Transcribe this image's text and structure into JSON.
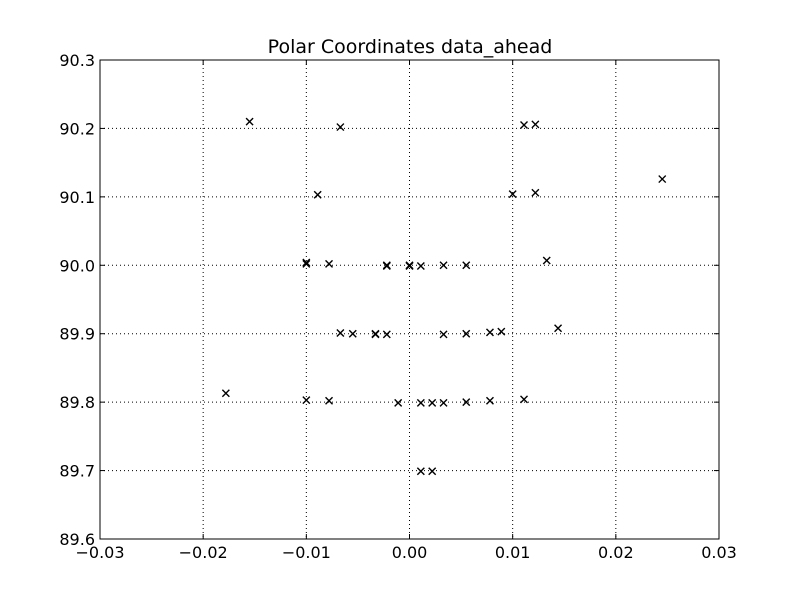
{
  "chart_data": {
    "type": "scatter",
    "title": "Polar Coordinates data_ahead",
    "xlabel": "",
    "ylabel": "",
    "xlim": [
      -0.03,
      0.03
    ],
    "ylim": [
      89.6,
      90.3
    ],
    "x_ticks": [
      -0.03,
      -0.02,
      -0.01,
      0.0,
      0.01,
      0.02,
      0.03
    ],
    "x_tick_labels": [
      "−0.03",
      "−0.02",
      "−0.01",
      "0.00",
      "0.01",
      "0.02",
      "0.03"
    ],
    "y_ticks": [
      89.6,
      89.7,
      89.8,
      89.9,
      90.0,
      90.1,
      90.2,
      90.3
    ],
    "y_tick_labels": [
      "89.6",
      "89.7",
      "89.8",
      "89.9",
      "90.0",
      "90.1",
      "90.2",
      "90.3"
    ],
    "grid": true,
    "marker": "x",
    "marker_color": "#000000",
    "points": [
      {
        "x": -0.0155,
        "y": 90.21
      },
      {
        "x": -0.0067,
        "y": 90.202
      },
      {
        "x": 0.0111,
        "y": 90.205
      },
      {
        "x": 0.0122,
        "y": 90.206
      },
      {
        "x": -0.0089,
        "y": 90.103
      },
      {
        "x": 0.01,
        "y": 90.104
      },
      {
        "x": 0.0122,
        "y": 90.106
      },
      {
        "x": 0.0245,
        "y": 90.126
      },
      {
        "x": -0.01,
        "y": 90.004
      },
      {
        "x": -0.01,
        "y": 90.002
      },
      {
        "x": -0.0078,
        "y": 90.002
      },
      {
        "x": -0.0022,
        "y": 90.0
      },
      {
        "x": -0.0022,
        "y": 89.999
      },
      {
        "x": 0.0,
        "y": 90.0
      },
      {
        "x": 0.0,
        "y": 89.999
      },
      {
        "x": 0.0011,
        "y": 89.999
      },
      {
        "x": 0.0033,
        "y": 90.0
      },
      {
        "x": 0.0055,
        "y": 90.0
      },
      {
        "x": 0.0133,
        "y": 90.007
      },
      {
        "x": -0.0067,
        "y": 89.901
      },
      {
        "x": -0.0055,
        "y": 89.9
      },
      {
        "x": -0.0033,
        "y": 89.9
      },
      {
        "x": -0.0033,
        "y": 89.899
      },
      {
        "x": -0.0022,
        "y": 89.899
      },
      {
        "x": 0.0033,
        "y": 89.899
      },
      {
        "x": 0.0055,
        "y": 89.9
      },
      {
        "x": 0.0078,
        "y": 89.902
      },
      {
        "x": 0.0089,
        "y": 89.903
      },
      {
        "x": 0.0144,
        "y": 89.908
      },
      {
        "x": -0.0178,
        "y": 89.813
      },
      {
        "x": -0.01,
        "y": 89.803
      },
      {
        "x": -0.0078,
        "y": 89.802
      },
      {
        "x": -0.0011,
        "y": 89.799
      },
      {
        "x": 0.0011,
        "y": 89.799
      },
      {
        "x": 0.0022,
        "y": 89.799
      },
      {
        "x": 0.0033,
        "y": 89.799
      },
      {
        "x": 0.0055,
        "y": 89.8
      },
      {
        "x": 0.0078,
        "y": 89.802
      },
      {
        "x": 0.0111,
        "y": 89.804
      },
      {
        "x": 0.0011,
        "y": 89.699
      },
      {
        "x": 0.0022,
        "y": 89.699
      }
    ]
  }
}
